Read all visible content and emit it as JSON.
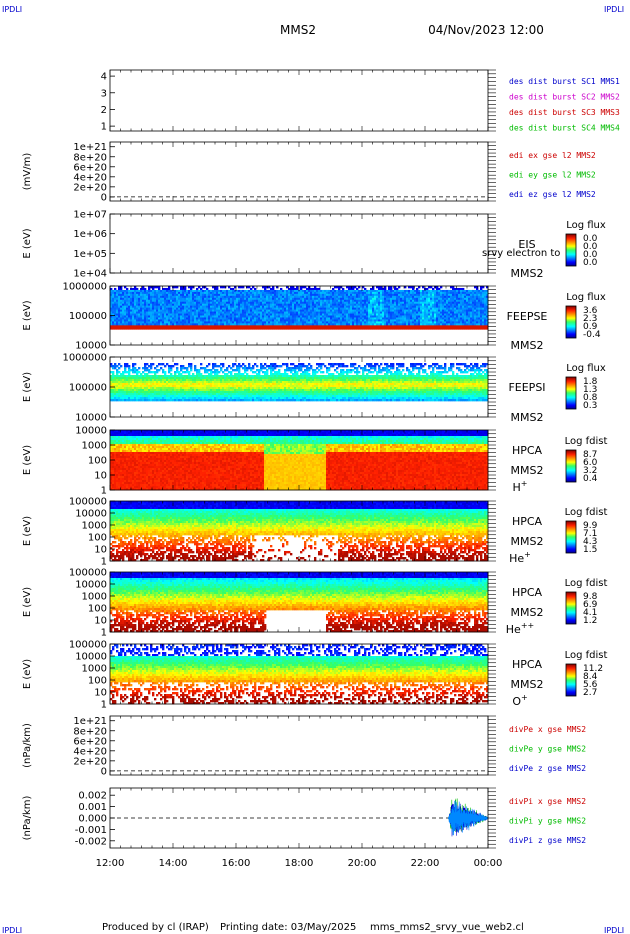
{
  "header": {
    "corner_left_top": "IPDLI",
    "corner_right_top": "IPDLI",
    "corner_left_bottom": "IPDLI",
    "corner_right_bottom": "IPDLI",
    "title": "MMS2",
    "datetime": "04/Nov/2023 12:00"
  },
  "footer": {
    "produced": "Produced by cl (IRAP)",
    "printing": "Printing date: 03/May/2025",
    "script": "mms_mms2_srvy_vue_web2.cl"
  },
  "colors": {
    "blue": "#0000cc",
    "magenta": "#cc00cc",
    "red": "#cc0000",
    "green": "#00bb00"
  },
  "chart_data": {
    "type": "heatmap",
    "x_ticks": [
      "12:00",
      "14:00",
      "16:00",
      "18:00",
      "20:00",
      "22:00",
      "00:00"
    ],
    "panels": [
      {
        "id": "spacecraft",
        "ylabel": "",
        "y_ticks": [
          "4",
          "3",
          "2",
          "1"
        ],
        "legend": [
          {
            "text": "des dist burst SC1 MMS1",
            "color": "blue"
          },
          {
            "text": "des dist burst SC2 MMS2",
            "color": "magenta"
          },
          {
            "text": "des dist burst SC3 MMS3",
            "color": "red"
          },
          {
            "text": "des dist burst SC4 MMS4",
            "color": "green"
          }
        ]
      },
      {
        "id": "edi",
        "ylabel": "(mV/m)",
        "y_ticks": [
          "1e+21",
          "8e+20",
          "6e+20",
          "4e+20",
          "2e+20",
          "0"
        ],
        "legend": [
          {
            "text": "edi ex gse l2 MMS2",
            "color": "red"
          },
          {
            "text": "edi ey gse l2 MMS2",
            "color": "green"
          },
          {
            "text": "edi ez gse l2 MMS2",
            "color": "blue"
          }
        ]
      },
      {
        "id": "eis",
        "ylabel": "E (eV)",
        "y_ticks": [
          "1e+07",
          "1e+06",
          "1e+05",
          "1e+04"
        ],
        "instrument": "EIS",
        "spacecraft": "MMS2",
        "overlay_text": "srvy electron to",
        "cb_title": "Log flux",
        "cb_ticks": [
          "0.0",
          "0.0",
          "0.0",
          "0.0"
        ]
      },
      {
        "id": "feepse",
        "ylabel": "E (eV)",
        "y_ticks": [
          "1000000",
          "100000",
          "10000"
        ],
        "instrument": "FEEPSE",
        "spacecraft": "MMS2",
        "cb_title": "Log flux",
        "cb_ticks": [
          "3.6",
          "2.3",
          "0.9",
          "-0.4"
        ]
      },
      {
        "id": "feepsi",
        "ylabel": "E (eV)",
        "y_ticks": [
          "1000000",
          "100000",
          "10000"
        ],
        "instrument": "FEEPSI",
        "spacecraft": "MMS2",
        "cb_title": "Log flux",
        "cb_ticks": [
          "1.8",
          "1.3",
          "0.8",
          "0.3"
        ]
      },
      {
        "id": "hpca_h",
        "ylabel": "E (eV)",
        "y_ticks": [
          "10000",
          "1000",
          "100",
          "10",
          "1"
        ],
        "instrument": "HPCA",
        "spacecraft": "MMS2",
        "species": "H",
        "species_sup": "+",
        "cb_title": "Log fdist",
        "cb_ticks": [
          "8.7",
          "6.0",
          "3.2",
          "0.4"
        ]
      },
      {
        "id": "hpca_he",
        "ylabel": "E (eV)",
        "y_ticks": [
          "100000",
          "10000",
          "1000",
          "100",
          "10",
          "1"
        ],
        "instrument": "HPCA",
        "spacecraft": "MMS2",
        "species": "He",
        "species_sup": "+",
        "cb_title": "Log fdist",
        "cb_ticks": [
          "9.9",
          "7.1",
          "4.3",
          "1.5"
        ]
      },
      {
        "id": "hpca_hepp",
        "ylabel": "E (eV)",
        "y_ticks": [
          "100000",
          "10000",
          "1000",
          "100",
          "10",
          "1"
        ],
        "instrument": "HPCA",
        "spacecraft": "MMS2",
        "species": "He",
        "species_sup": "++",
        "cb_title": "Log fdist",
        "cb_ticks": [
          "9.8",
          "6.9",
          "4.1",
          "1.2"
        ]
      },
      {
        "id": "hpca_o",
        "ylabel": "E (eV)",
        "y_ticks": [
          "100000",
          "10000",
          "1000",
          "100",
          "10",
          "1"
        ],
        "instrument": "HPCA",
        "spacecraft": "MMS2",
        "species": "O",
        "species_sup": "+",
        "cb_title": "Log fdist",
        "cb_ticks": [
          "11.2",
          "8.4",
          "5.6",
          "2.7"
        ]
      },
      {
        "id": "divpe",
        "ylabel": "(nPa/km)",
        "y_ticks": [
          "1e+21",
          "8e+20",
          "6e+20",
          "4e+20",
          "2e+20",
          "0"
        ],
        "legend": [
          {
            "text": "divPe x gse MMS2",
            "color": "red"
          },
          {
            "text": "divPe y gse MMS2",
            "color": "green"
          },
          {
            "text": "divPe z gse MMS2",
            "color": "blue"
          }
        ]
      },
      {
        "id": "divpi",
        "ylabel": "(nPa/km)",
        "y_ticks": [
          "0.002",
          "0.001",
          "0.000",
          "-0.001",
          "-0.002"
        ],
        "legend": [
          {
            "text": "divPi x gse MMS2",
            "color": "red"
          },
          {
            "text": "divPi y gse MMS2",
            "color": "green"
          },
          {
            "text": "divPi z gse MMS2",
            "color": "blue"
          }
        ]
      }
    ]
  }
}
